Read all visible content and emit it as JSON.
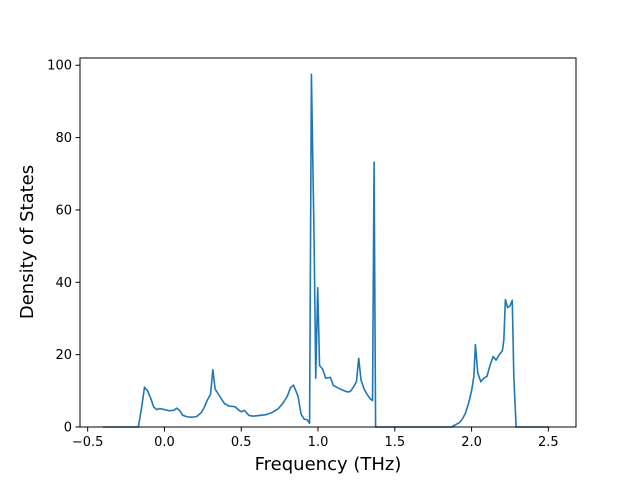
{
  "chart_data": {
    "type": "line",
    "title": "",
    "xlabel": "Frequency (THz)",
    "ylabel": "Density of States",
    "xlim": [
      -0.55,
      2.68
    ],
    "ylim": [
      0,
      102
    ],
    "xticks": [
      -0.5,
      0.0,
      0.5,
      1.0,
      1.5,
      2.0,
      2.5
    ],
    "xtick_labels": [
      "−0.5",
      "0.0",
      "0.5",
      "1.0",
      "1.5",
      "2.0",
      "2.5"
    ],
    "yticks": [
      0,
      20,
      40,
      60,
      80,
      100
    ],
    "ytick_labels": [
      "0",
      "20",
      "40",
      "60",
      "80",
      "100"
    ],
    "grid": false,
    "legend": "none",
    "series": [
      {
        "color": "#1f77b4",
        "points": [
          [
            -0.4,
            0.0
          ],
          [
            -0.3,
            0.0
          ],
          [
            -0.2,
            0.0
          ],
          [
            -0.17,
            0.0
          ],
          [
            -0.15,
            5.0
          ],
          [
            -0.13,
            11.0
          ],
          [
            -0.11,
            10.0
          ],
          [
            -0.09,
            8.0
          ],
          [
            -0.07,
            5.5
          ],
          [
            -0.05,
            4.8
          ],
          [
            -0.03,
            5.1
          ],
          [
            0.0,
            4.8
          ],
          [
            0.03,
            4.5
          ],
          [
            0.06,
            4.6
          ],
          [
            0.08,
            5.2
          ],
          [
            0.1,
            4.5
          ],
          [
            0.12,
            3.2
          ],
          [
            0.15,
            2.8
          ],
          [
            0.18,
            2.7
          ],
          [
            0.21,
            2.9
          ],
          [
            0.24,
            4.0
          ],
          [
            0.26,
            5.5
          ],
          [
            0.28,
            7.5
          ],
          [
            0.3,
            9.0
          ],
          [
            0.315,
            15.8
          ],
          [
            0.33,
            10.5
          ],
          [
            0.36,
            8.5
          ],
          [
            0.39,
            6.5
          ],
          [
            0.42,
            5.8
          ],
          [
            0.46,
            5.6
          ],
          [
            0.48,
            4.8
          ],
          [
            0.5,
            4.2
          ],
          [
            0.52,
            4.6
          ],
          [
            0.55,
            3.2
          ],
          [
            0.58,
            3.0
          ],
          [
            0.62,
            3.2
          ],
          [
            0.66,
            3.4
          ],
          [
            0.7,
            4.0
          ],
          [
            0.74,
            5.0
          ],
          [
            0.77,
            6.5
          ],
          [
            0.8,
            8.5
          ],
          [
            0.82,
            10.8
          ],
          [
            0.84,
            11.6
          ],
          [
            0.87,
            8.5
          ],
          [
            0.89,
            3.5
          ],
          [
            0.91,
            2.2
          ],
          [
            0.93,
            2.0
          ],
          [
            0.945,
            1.0
          ],
          [
            0.957,
            97.5
          ],
          [
            0.975,
            50.0
          ],
          [
            0.985,
            13.5
          ],
          [
            0.998,
            38.5
          ],
          [
            1.01,
            17.0
          ],
          [
            1.03,
            16.0
          ],
          [
            1.05,
            13.5
          ],
          [
            1.08,
            13.7
          ],
          [
            1.1,
            11.5
          ],
          [
            1.13,
            10.8
          ],
          [
            1.16,
            10.2
          ],
          [
            1.19,
            9.7
          ],
          [
            1.21,
            9.8
          ],
          [
            1.23,
            11.0
          ],
          [
            1.25,
            12.5
          ],
          [
            1.265,
            19.0
          ],
          [
            1.28,
            13.0
          ],
          [
            1.3,
            10.5
          ],
          [
            1.32,
            9.0
          ],
          [
            1.34,
            7.8
          ],
          [
            1.355,
            7.3
          ],
          [
            1.365,
            73.2
          ],
          [
            1.375,
            0.0
          ],
          [
            1.45,
            0.0
          ],
          [
            1.6,
            0.0
          ],
          [
            1.75,
            0.0
          ],
          [
            1.87,
            0.0
          ],
          [
            1.89,
            0.5
          ],
          [
            1.92,
            1.2
          ],
          [
            1.94,
            2.2
          ],
          [
            1.96,
            3.8
          ],
          [
            1.98,
            6.5
          ],
          [
            2.0,
            10.0
          ],
          [
            2.015,
            14.0
          ],
          [
            2.025,
            22.8
          ],
          [
            2.04,
            15.0
          ],
          [
            2.06,
            12.5
          ],
          [
            2.08,
            13.5
          ],
          [
            2.1,
            14.0
          ],
          [
            2.12,
            17.0
          ],
          [
            2.14,
            19.5
          ],
          [
            2.16,
            18.5
          ],
          [
            2.18,
            20.0
          ],
          [
            2.2,
            21.0
          ],
          [
            2.21,
            24.0
          ],
          [
            2.22,
            35.2
          ],
          [
            2.235,
            33.0
          ],
          [
            2.25,
            33.5
          ],
          [
            2.265,
            35.0
          ],
          [
            2.275,
            14.0
          ],
          [
            2.29,
            0.0
          ],
          [
            2.4,
            0.0
          ],
          [
            2.5,
            0.0
          ]
        ]
      }
    ]
  }
}
